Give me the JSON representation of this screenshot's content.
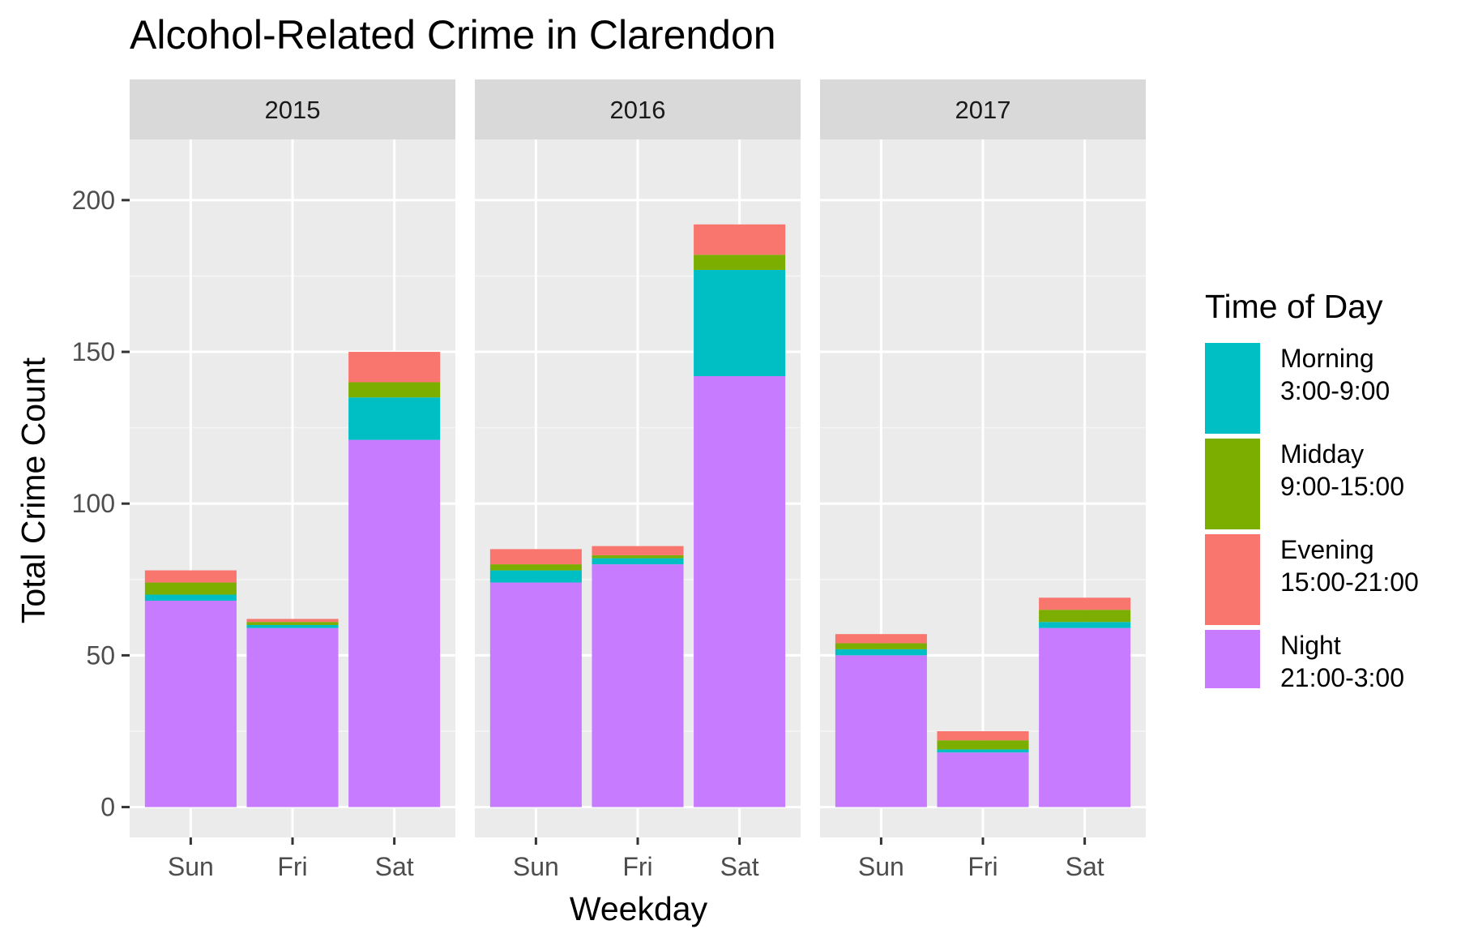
{
  "chart_data": {
    "type": "bar",
    "stacked": true,
    "title": "Alcohol-Related Crime in Clarendon",
    "xlabel": "Weekday",
    "ylabel": "Total Crime Count",
    "ylim": [
      0,
      220
    ],
    "yticks": [
      0,
      50,
      100,
      150,
      200
    ],
    "grid": true,
    "legend_position": "right",
    "legend_title": "Time of Day",
    "categories": [
      "Sun",
      "Fri",
      "Sat"
    ],
    "series": [
      {
        "key": "night",
        "name": "Night",
        "sub": "21:00-3:00",
        "color": "#C77CFF"
      },
      {
        "key": "morning",
        "name": "Morning",
        "sub": "3:00-9:00",
        "color": "#00BFC4"
      },
      {
        "key": "midday",
        "name": "Midday",
        "sub": "9:00-15:00",
        "color": "#7CAE00"
      },
      {
        "key": "evening",
        "name": "Evening",
        "sub": "15:00-21:00",
        "color": "#F8766D"
      }
    ],
    "legend_order": [
      "morning",
      "midday",
      "evening",
      "night"
    ],
    "facets": [
      {
        "label": "2015",
        "values": {
          "night": [
            68,
            59,
            121
          ],
          "morning": [
            2,
            1,
            14
          ],
          "midday": [
            4,
            1,
            5
          ],
          "evening": [
            4,
            1,
            10
          ]
        }
      },
      {
        "label": "2016",
        "values": {
          "night": [
            74,
            80,
            142
          ],
          "morning": [
            4,
            2,
            35
          ],
          "midday": [
            2,
            1,
            5
          ],
          "evening": [
            5,
            3,
            10
          ]
        }
      },
      {
        "label": "2017",
        "values": {
          "night": [
            50,
            18,
            59
          ],
          "morning": [
            2,
            1,
            2
          ],
          "midday": [
            2,
            3,
            4
          ],
          "evening": [
            3,
            3,
            4
          ]
        }
      }
    ]
  }
}
